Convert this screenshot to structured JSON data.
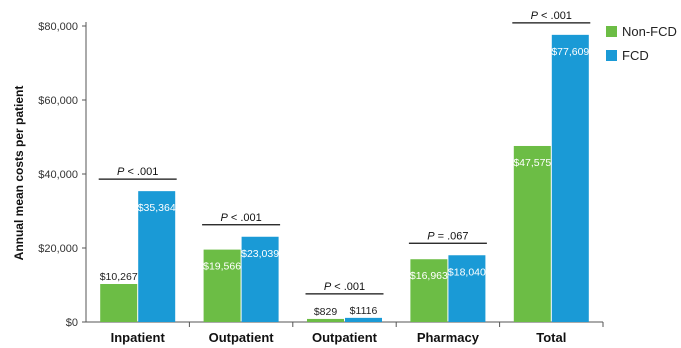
{
  "chart_data": {
    "type": "bar",
    "title": "",
    "ylabel": "Annual mean costs per patient",
    "xlabel": "",
    "ylim": [
      0,
      80000
    ],
    "yticks": [
      0,
      20000,
      40000,
      60000,
      80000
    ],
    "ytick_labels": [
      "$0",
      "$20,000",
      "$40,000",
      "$60,000",
      "$80,000"
    ],
    "categories": [
      "Inpatient",
      "Outpatient",
      "Outpatient",
      "Pharmacy",
      "Total"
    ],
    "series": [
      {
        "name": "Non-FCD",
        "color": "#6cbd45",
        "values": [
          10267,
          19566,
          829,
          16963,
          47575
        ],
        "labels": [
          "$10,267",
          "$19,566",
          "$829",
          "$16,963",
          "$47,575"
        ]
      },
      {
        "name": "FCD",
        "color": "#1a9ad6",
        "values": [
          35364,
          23039,
          1116,
          18040,
          77609
        ],
        "labels": [
          "$35,364",
          "$23,039",
          "$1116",
          "$18,040",
          "$77,609"
        ]
      }
    ],
    "p_values": [
      {
        "prefix": "P",
        "text": " < .001"
      },
      {
        "prefix": "P",
        "text": " < .001"
      },
      {
        "prefix": "P",
        "text": " < .001"
      },
      {
        "prefix": "P",
        "text": " = .067"
      },
      {
        "prefix": "P",
        "text": " < .001"
      }
    ],
    "legend_position": "top-right",
    "grid": false
  }
}
